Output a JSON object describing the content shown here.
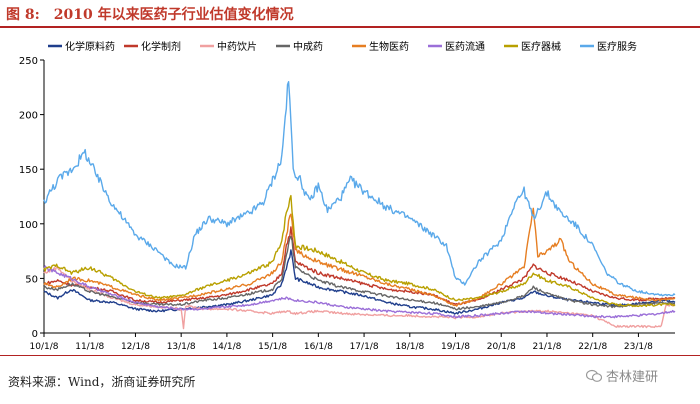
{
  "figure": {
    "label": "图 8:",
    "title": "2010 年以来医药子行业估值变化情况",
    "source": "资料来源：Wind，浙商证券研究所",
    "watermark": "杏林建研"
  },
  "chart_data": {
    "type": "line",
    "title": "2010 年以来医药子行业估值变化情况",
    "xlabel": "",
    "ylabel": "",
    "ylim": [
      0,
      250
    ],
    "yticks": [
      0,
      50,
      100,
      150,
      200,
      250
    ],
    "x": [
      "10/1/8",
      "11/1/8",
      "12/1/8",
      "13/1/8",
      "14/1/8",
      "15/1/8",
      "16/1/8",
      "17/1/8",
      "18/1/8",
      "19/1/8",
      "20/1/8",
      "21/1/8",
      "22/1/8",
      "23/1/8"
    ],
    "x_range": [
      0,
      13.8
    ],
    "legend": "top",
    "grid": false,
    "series": [
      {
        "name": "化学原料药",
        "color": "#1f3e8c",
        "points": [
          [
            0,
            38
          ],
          [
            0.3,
            32
          ],
          [
            0.6,
            40
          ],
          [
            1,
            30
          ],
          [
            1.5,
            28
          ],
          [
            2,
            22
          ],
          [
            2.5,
            20
          ],
          [
            3,
            22
          ],
          [
            3.5,
            24
          ],
          [
            4,
            26
          ],
          [
            4.5,
            30
          ],
          [
            5,
            35
          ],
          [
            5.2,
            45
          ],
          [
            5.3,
            60
          ],
          [
            5.4,
            75
          ],
          [
            5.5,
            50
          ],
          [
            6,
            42
          ],
          [
            6.5,
            38
          ],
          [
            7,
            34
          ],
          [
            7.5,
            28
          ],
          [
            8,
            24
          ],
          [
            8.5,
            22
          ],
          [
            9,
            18
          ],
          [
            9.5,
            22
          ],
          [
            10,
            28
          ],
          [
            10.5,
            32
          ],
          [
            10.7,
            38
          ],
          [
            11,
            34
          ],
          [
            11.5,
            30
          ],
          [
            12,
            28
          ],
          [
            12.5,
            25
          ],
          [
            13,
            27
          ],
          [
            13.5,
            30
          ],
          [
            13.8,
            28
          ]
        ]
      },
      {
        "name": "化学制剂",
        "color": "#c0392b",
        "points": [
          [
            0,
            45
          ],
          [
            0.3,
            48
          ],
          [
            0.6,
            44
          ],
          [
            1,
            42
          ],
          [
            1.5,
            38
          ],
          [
            2,
            30
          ],
          [
            2.5,
            28
          ],
          [
            3,
            30
          ],
          [
            3.5,
            32
          ],
          [
            4,
            35
          ],
          [
            4.5,
            40
          ],
          [
            5,
            45
          ],
          [
            5.2,
            55
          ],
          [
            5.3,
            80
          ],
          [
            5.4,
            95
          ],
          [
            5.5,
            65
          ],
          [
            6,
            55
          ],
          [
            6.5,
            50
          ],
          [
            7,
            45
          ],
          [
            7.5,
            40
          ],
          [
            8,
            38
          ],
          [
            8.5,
            35
          ],
          [
            9,
            26
          ],
          [
            9.5,
            30
          ],
          [
            10,
            40
          ],
          [
            10.5,
            50
          ],
          [
            10.7,
            62
          ],
          [
            11,
            55
          ],
          [
            11.5,
            48
          ],
          [
            12,
            38
          ],
          [
            12.5,
            32
          ],
          [
            13,
            30
          ],
          [
            13.5,
            32
          ],
          [
            13.8,
            32
          ]
        ]
      },
      {
        "name": "中药饮片",
        "color": "#f0a0a0",
        "points": [
          [
            0,
            55
          ],
          [
            0.3,
            60
          ],
          [
            0.6,
            48
          ],
          [
            1,
            40
          ],
          [
            1.5,
            32
          ],
          [
            2,
            26
          ],
          [
            2.5,
            24
          ],
          [
            3,
            22
          ],
          [
            3.05,
            5
          ],
          [
            3.1,
            25
          ],
          [
            3.5,
            22
          ],
          [
            4,
            22
          ],
          [
            4.5,
            20
          ],
          [
            5,
            18
          ],
          [
            5.3,
            20
          ],
          [
            5.5,
            18
          ],
          [
            6,
            20
          ],
          [
            6.5,
            18
          ],
          [
            7,
            17
          ],
          [
            7.5,
            16
          ],
          [
            8,
            16
          ],
          [
            8.5,
            15
          ],
          [
            9,
            14
          ],
          [
            9.5,
            15
          ],
          [
            10,
            18
          ],
          [
            10.5,
            20
          ],
          [
            11,
            20
          ],
          [
            11.5,
            18
          ],
          [
            12,
            16
          ],
          [
            12.5,
            6
          ],
          [
            13,
            6
          ],
          [
            13.5,
            6
          ],
          [
            13.6,
            25
          ],
          [
            13.8,
            26
          ]
        ]
      },
      {
        "name": "中成药",
        "color": "#666666",
        "points": [
          [
            0,
            42
          ],
          [
            0.3,
            40
          ],
          [
            0.6,
            45
          ],
          [
            1,
            38
          ],
          [
            1.5,
            33
          ],
          [
            2,
            28
          ],
          [
            2.5,
            26
          ],
          [
            3,
            26
          ],
          [
            3.5,
            30
          ],
          [
            4,
            32
          ],
          [
            4.5,
            36
          ],
          [
            5,
            40
          ],
          [
            5.2,
            50
          ],
          [
            5.3,
            70
          ],
          [
            5.4,
            90
          ],
          [
            5.5,
            60
          ],
          [
            6,
            48
          ],
          [
            6.5,
            42
          ],
          [
            7,
            38
          ],
          [
            7.5,
            34
          ],
          [
            8,
            30
          ],
          [
            8.5,
            28
          ],
          [
            9,
            22
          ],
          [
            9.5,
            24
          ],
          [
            10,
            28
          ],
          [
            10.5,
            34
          ],
          [
            10.7,
            42
          ],
          [
            11,
            36
          ],
          [
            11.5,
            30
          ],
          [
            12,
            26
          ],
          [
            12.5,
            24
          ],
          [
            13,
            26
          ],
          [
            13.5,
            28
          ],
          [
            13.8,
            27
          ]
        ]
      },
      {
        "name": "生物医药",
        "color": "#e67e22",
        "points": [
          [
            0,
            45
          ],
          [
            0.3,
            42
          ],
          [
            0.6,
            50
          ],
          [
            1,
            48
          ],
          [
            1.5,
            42
          ],
          [
            2,
            35
          ],
          [
            2.5,
            30
          ],
          [
            3,
            32
          ],
          [
            3.5,
            36
          ],
          [
            4,
            40
          ],
          [
            4.5,
            45
          ],
          [
            5,
            55
          ],
          [
            5.2,
            65
          ],
          [
            5.3,
            90
          ],
          [
            5.4,
            110
          ],
          [
            5.5,
            75
          ],
          [
            6,
            65
          ],
          [
            6.5,
            58
          ],
          [
            7,
            52
          ],
          [
            7.5,
            45
          ],
          [
            8,
            40
          ],
          [
            8.5,
            35
          ],
          [
            9,
            25
          ],
          [
            9.5,
            32
          ],
          [
            10,
            45
          ],
          [
            10.5,
            60
          ],
          [
            10.7,
            115
          ],
          [
            10.8,
            70
          ],
          [
            11,
            75
          ],
          [
            11.3,
            85
          ],
          [
            11.5,
            65
          ],
          [
            12,
            45
          ],
          [
            12.5,
            35
          ],
          [
            13,
            32
          ],
          [
            13.5,
            30
          ],
          [
            13.8,
            32
          ]
        ]
      },
      {
        "name": "医药流通",
        "color": "#9b6fd8",
        "points": [
          [
            0,
            60
          ],
          [
            0.3,
            55
          ],
          [
            0.6,
            50
          ],
          [
            1,
            42
          ],
          [
            1.5,
            35
          ],
          [
            2,
            28
          ],
          [
            2.5,
            24
          ],
          [
            3,
            22
          ],
          [
            3.5,
            22
          ],
          [
            4,
            24
          ],
          [
            4.5,
            26
          ],
          [
            5,
            30
          ],
          [
            5.3,
            32
          ],
          [
            5.5,
            30
          ],
          [
            6,
            28
          ],
          [
            6.5,
            24
          ],
          [
            7,
            22
          ],
          [
            7.5,
            20
          ],
          [
            8,
            19
          ],
          [
            8.5,
            18
          ],
          [
            9,
            15
          ],
          [
            9.5,
            16
          ],
          [
            10,
            18
          ],
          [
            10.5,
            20
          ],
          [
            11,
            18
          ],
          [
            11.5,
            17
          ],
          [
            12,
            15
          ],
          [
            12.5,
            15
          ],
          [
            13,
            16
          ],
          [
            13.5,
            18
          ],
          [
            13.8,
            20
          ]
        ]
      },
      {
        "name": "医疗器械",
        "color": "#b8a000",
        "points": [
          [
            0,
            58
          ],
          [
            0.3,
            62
          ],
          [
            0.6,
            55
          ],
          [
            1,
            60
          ],
          [
            1.5,
            50
          ],
          [
            2,
            38
          ],
          [
            2.5,
            32
          ],
          [
            3,
            34
          ],
          [
            3.5,
            42
          ],
          [
            4,
            48
          ],
          [
            4.5,
            55
          ],
          [
            5,
            65
          ],
          [
            5.2,
            85
          ],
          [
            5.3,
            110
          ],
          [
            5.4,
            125
          ],
          [
            5.5,
            80
          ],
          [
            6,
            75
          ],
          [
            6.5,
            65
          ],
          [
            7,
            55
          ],
          [
            7.5,
            48
          ],
          [
            8,
            45
          ],
          [
            8.5,
            40
          ],
          [
            9,
            30
          ],
          [
            9.5,
            32
          ],
          [
            10,
            38
          ],
          [
            10.5,
            45
          ],
          [
            10.7,
            55
          ],
          [
            11,
            48
          ],
          [
            11.5,
            42
          ],
          [
            12,
            32
          ],
          [
            12.5,
            26
          ],
          [
            13,
            25
          ],
          [
            13.5,
            26
          ],
          [
            13.8,
            26
          ]
        ]
      },
      {
        "name": "医疗服务",
        "color": "#5aa9ea",
        "points": [
          [
            0,
            120
          ],
          [
            0.3,
            140
          ],
          [
            0.6,
            150
          ],
          [
            0.9,
            165
          ],
          [
            1.2,
            140
          ],
          [
            1.5,
            118
          ],
          [
            2,
            90
          ],
          [
            2.5,
            75
          ],
          [
            2.8,
            62
          ],
          [
            3.1,
            60
          ],
          [
            3.3,
            90
          ],
          [
            3.6,
            105
          ],
          [
            4,
            100
          ],
          [
            4.5,
            110
          ],
          [
            4.8,
            120
          ],
          [
            5,
            140
          ],
          [
            5.2,
            160
          ],
          [
            5.3,
            210
          ],
          [
            5.35,
            232
          ],
          [
            5.45,
            150
          ],
          [
            5.6,
            140
          ],
          [
            5.8,
            120
          ],
          [
            6,
            135
          ],
          [
            6.2,
            112
          ],
          [
            6.5,
            125
          ],
          [
            6.7,
            140
          ],
          [
            7,
            130
          ],
          [
            7.5,
            115
          ],
          [
            8,
            105
          ],
          [
            8.5,
            90
          ],
          [
            8.8,
            80
          ],
          [
            9,
            50
          ],
          [
            9.2,
            45
          ],
          [
            9.5,
            65
          ],
          [
            10,
            85
          ],
          [
            10.3,
            120
          ],
          [
            10.5,
            130
          ],
          [
            10.7,
            105
          ],
          [
            11,
            128
          ],
          [
            11.3,
            110
          ],
          [
            11.6,
            100
          ],
          [
            12,
            80
          ],
          [
            12.3,
            55
          ],
          [
            12.6,
            45
          ],
          [
            13,
            38
          ],
          [
            13.5,
            35
          ],
          [
            13.8,
            35
          ]
        ]
      }
    ]
  }
}
